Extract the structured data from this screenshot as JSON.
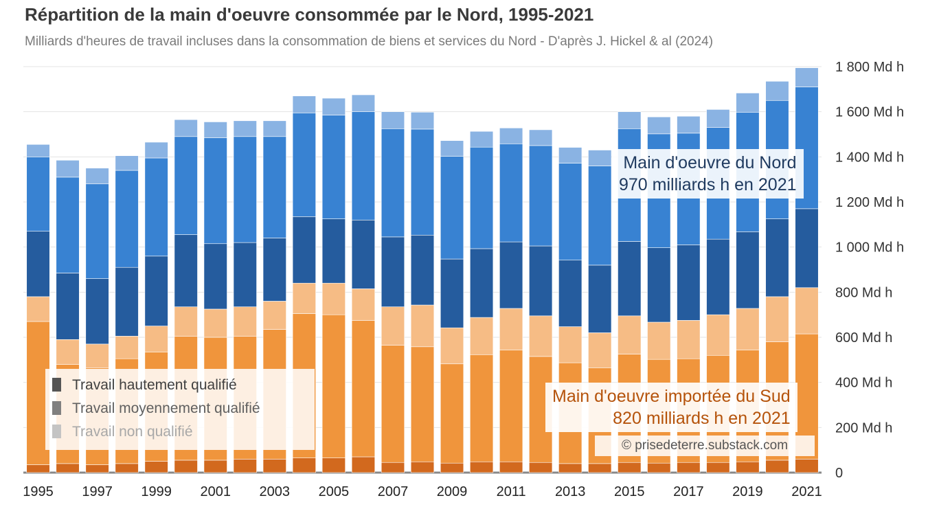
{
  "chart_data": {
    "type": "bar",
    "stacked": true,
    "title": "Répartition de la main d'oeuvre consommée par le Nord, 1995-2021",
    "subtitle": "Milliards d'heures de travail incluses dans la consommation de biens et services du Nord - D'après J. Hickel & al (2024)",
    "xlabel": "",
    "ylabel": "",
    "ylim": [
      0,
      1800
    ],
    "yticks": [
      0,
      200,
      400,
      600,
      800,
      1000,
      1200,
      1400,
      1600,
      1800
    ],
    "ytick_labels": [
      "0",
      "200 Md h",
      "400 Md h",
      "600 Md h",
      "800 Md h",
      "1 000 Md h",
      "1 200 Md h",
      "1 400 Md h",
      "1 600 Md h",
      "1 800 Md h"
    ],
    "categories": [
      "1995",
      "1996",
      "1997",
      "1998",
      "1999",
      "2000",
      "2001",
      "2002",
      "2003",
      "2004",
      "2005",
      "2006",
      "2007",
      "2008",
      "2009",
      "2010",
      "2011",
      "2012",
      "2013",
      "2014",
      "2015",
      "2016",
      "2017",
      "2018",
      "2019",
      "2020",
      "2021"
    ],
    "xtick_labels": [
      "1995",
      "1997",
      "1999",
      "2001",
      "2003",
      "2005",
      "2007",
      "2009",
      "2011",
      "2013",
      "2015",
      "2017",
      "2019",
      "2021"
    ],
    "series": [
      {
        "name": "Sud - Travail hautement qualifié",
        "color": "#d2691e",
        "values": [
          35,
          40,
          35,
          40,
          50,
          55,
          55,
          60,
          60,
          65,
          65,
          70,
          45,
          48,
          42,
          48,
          48,
          45,
          40,
          40,
          45,
          42,
          45,
          45,
          48,
          55,
          60
        ]
      },
      {
        "name": "Sud - Travail moyennement qualifié",
        "color": "#f0953c",
        "values": [
          635,
          440,
          430,
          465,
          485,
          550,
          545,
          545,
          575,
          640,
          635,
          605,
          520,
          510,
          440,
          475,
          495,
          470,
          447,
          425,
          480,
          460,
          460,
          475,
          495,
          525,
          555
        ]
      },
      {
        "name": "Sud - Travail non qualifié",
        "color": "#f6bc85",
        "values": [
          110,
          110,
          105,
          100,
          115,
          130,
          125,
          130,
          125,
          135,
          140,
          140,
          170,
          185,
          160,
          165,
          185,
          180,
          160,
          155,
          170,
          165,
          170,
          180,
          185,
          200,
          205
        ]
      },
      {
        "name": "Nord - Travail hautement qualifié",
        "color": "#255c9e",
        "values": [
          290,
          295,
          290,
          305,
          310,
          320,
          290,
          285,
          280,
          295,
          285,
          305,
          310,
          310,
          305,
          305,
          295,
          310,
          295,
          300,
          330,
          330,
          335,
          335,
          340,
          345,
          350
        ]
      },
      {
        "name": "Nord - Travail moyennement qualifié",
        "color": "#3882d2",
        "values": [
          330,
          425,
          420,
          430,
          435,
          435,
          470,
          470,
          450,
          460,
          460,
          480,
          480,
          470,
          455,
          450,
          435,
          445,
          430,
          440,
          500,
          505,
          495,
          495,
          530,
          525,
          540
        ]
      },
      {
        "name": "Nord - Travail non qualifié",
        "color": "#8ab3e3",
        "values": [
          55,
          75,
          70,
          65,
          70,
          75,
          70,
          70,
          70,
          75,
          75,
          75,
          75,
          75,
          70,
          70,
          70,
          70,
          70,
          70,
          75,
          75,
          75,
          80,
          85,
          85,
          85
        ]
      }
    ],
    "legend": {
      "placement": "bottom-left",
      "entries": [
        {
          "label_a": "Travail",
          "label_b": "hautement qualifié",
          "color": "#555555",
          "text_color": "#404040"
        },
        {
          "label_a": "Travail",
          "label_b": "moyennement qualifié",
          "color": "#808080",
          "text_color": "#606060"
        },
        {
          "label_a": "Travail",
          "label_b": "non qualifié",
          "color": "#c4c4c4",
          "text_color": "#a8a8a8"
        }
      ]
    },
    "annotations": {
      "north": {
        "line1": "Main d'oeuvre du Nord",
        "line2": "970 milliards h en 2021"
      },
      "south": {
        "line1": "Main d'oeuvre importée du Sud",
        "line2": "820 milliards h en 2021"
      }
    },
    "credit": "© prisedeterre.substack.com",
    "grid": true
  }
}
